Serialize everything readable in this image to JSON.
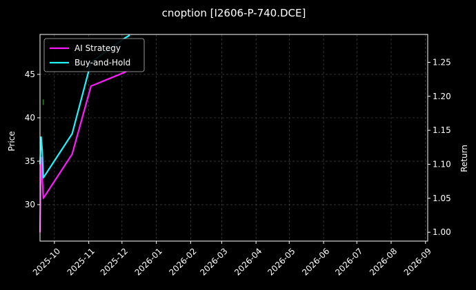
{
  "chart_data": {
    "type": "line",
    "title": "cnoption [I2606-P-740.DCE]",
    "xlabel": "",
    "ylabel_left": "Price",
    "ylabel_right": "Return",
    "x_ticks": [
      "2025-10",
      "2025-11",
      "2025-12",
      "2026-01",
      "2026-02",
      "2026-03",
      "2026-04",
      "2026-05",
      "2026-06",
      "2026-07",
      "2026-08",
      "2026-09"
    ],
    "xlim": [
      "2025-09-18",
      "2026-09-03"
    ],
    "y_left": {
      "ylim": [
        25.8,
        49.6
      ],
      "ticks": [
        30,
        35,
        40,
        45
      ]
    },
    "y_right": {
      "ylim": [
        0.987,
        1.291
      ],
      "ticks": [
        1.0,
        1.05,
        1.1,
        1.15,
        1.2,
        1.25
      ]
    },
    "grid": true,
    "legend_position": "upper-left",
    "series": [
      {
        "name": "AI Strategy",
        "color": "#ff1aff",
        "axis": "right",
        "points": [
          [
            "2025-09-18",
            1.0
          ],
          [
            "2025-09-19",
            1.11
          ],
          [
            "2025-09-20",
            1.08
          ],
          [
            "2025-09-21",
            1.05
          ],
          [
            "2025-10-17",
            1.115
          ],
          [
            "2025-11-03",
            1.215
          ],
          [
            "2025-12-03",
            1.235
          ],
          [
            "2025-12-08",
            1.24
          ]
        ]
      },
      {
        "name": "Buy-and-Hold",
        "color": "#1ff5ff",
        "axis": "right",
        "points": [
          [
            "2025-09-18",
            1.1
          ],
          [
            "2025-09-19",
            1.14
          ],
          [
            "2025-09-20",
            1.12
          ],
          [
            "2025-09-21",
            1.08
          ],
          [
            "2025-10-17",
            1.145
          ],
          [
            "2025-11-03",
            1.25
          ],
          [
            "2025-12-03",
            1.285
          ],
          [
            "2025-12-08",
            1.29
          ]
        ]
      }
    ],
    "markers": [
      {
        "date": "2025-09-21",
        "price": 41.8,
        "color": "#2ca02c"
      }
    ]
  }
}
